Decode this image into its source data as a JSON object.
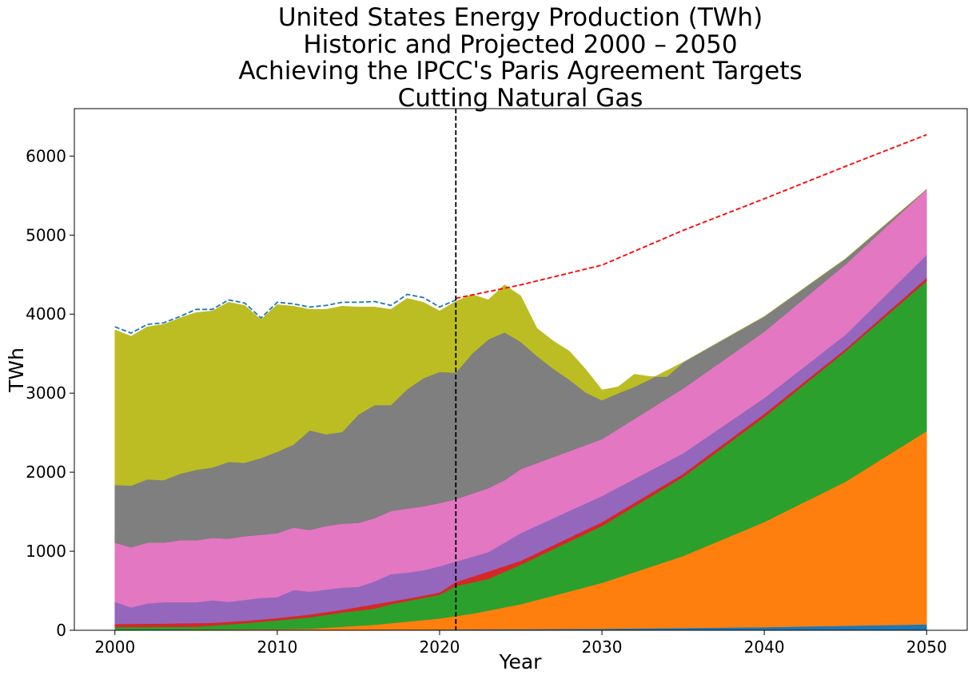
{
  "chart_data": {
    "type": "area",
    "title_lines": [
      "United States Energy Production (TWh)",
      "Historic and Projected 2000 – 2050",
      "Achieving the IPCC's Paris Agreement Targets",
      "Cutting Natural Gas"
    ],
    "xlabel": "Year",
    "ylabel": "TWh",
    "xlim": [
      1997.5,
      2052.5
    ],
    "ylim": [
      0,
      6600
    ],
    "xticks": [
      2000,
      2010,
      2020,
      2030,
      2040,
      2050
    ],
    "yticks": [
      0,
      1000,
      2000,
      3000,
      4000,
      5000,
      6000
    ],
    "grid": false,
    "vline_x": 2021,
    "vline_color": "#000000",
    "stacks": [
      {
        "color": "#1f77b4",
        "points": [
          [
            2000,
            5
          ],
          [
            2010,
            7
          ],
          [
            2020,
            10
          ],
          [
            2030,
            20
          ],
          [
            2040,
            40
          ],
          [
            2050,
            75
          ]
        ]
      },
      {
        "color": "#ff7f0e",
        "points": [
          [
            2000,
            6
          ],
          [
            2005,
            10
          ],
          [
            2010,
            15
          ],
          [
            2012,
            20
          ],
          [
            2014,
            45
          ],
          [
            2016,
            70
          ],
          [
            2018,
            110
          ],
          [
            2020,
            150
          ],
          [
            2021,
            180
          ],
          [
            2022,
            210
          ],
          [
            2025,
            330
          ],
          [
            2030,
            600
          ],
          [
            2035,
            940
          ],
          [
            2040,
            1370
          ],
          [
            2045,
            1880
          ],
          [
            2050,
            2520
          ]
        ]
      },
      {
        "color": "#2ca02c",
        "points": [
          [
            2000,
            40
          ],
          [
            2005,
            45
          ],
          [
            2008,
            90
          ],
          [
            2010,
            125
          ],
          [
            2012,
            165
          ],
          [
            2014,
            225
          ],
          [
            2016,
            275
          ],
          [
            2017,
            330
          ],
          [
            2018,
            370
          ],
          [
            2019,
            410
          ],
          [
            2020,
            450
          ],
          [
            2021,
            560
          ],
          [
            2023,
            650
          ],
          [
            2025,
            830
          ],
          [
            2030,
            1320
          ],
          [
            2035,
            1940
          ],
          [
            2040,
            2700
          ],
          [
            2045,
            3530
          ],
          [
            2050,
            4420
          ]
        ]
      },
      {
        "color": "#d62728",
        "points": [
          [
            2000,
            80
          ],
          [
            2003,
            85
          ],
          [
            2006,
            95
          ],
          [
            2008,
            120
          ],
          [
            2010,
            155
          ],
          [
            2012,
            200
          ],
          [
            2014,
            260
          ],
          [
            2016,
            330
          ],
          [
            2018,
            400
          ],
          [
            2020,
            480
          ],
          [
            2021,
            610
          ],
          [
            2025,
            880
          ],
          [
            2030,
            1370
          ],
          [
            2035,
            1980
          ],
          [
            2040,
            2740
          ],
          [
            2045,
            3560
          ],
          [
            2050,
            4460
          ]
        ]
      },
      {
        "color": "#9467bd",
        "points": [
          [
            2000,
            360
          ],
          [
            2001,
            290
          ],
          [
            2002,
            340
          ],
          [
            2003,
            355
          ],
          [
            2005,
            355
          ],
          [
            2006,
            380
          ],
          [
            2007,
            360
          ],
          [
            2009,
            410
          ],
          [
            2010,
            420
          ],
          [
            2011,
            510
          ],
          [
            2012,
            490
          ],
          [
            2014,
            540
          ],
          [
            2015,
            550
          ],
          [
            2016,
            620
          ],
          [
            2017,
            710
          ],
          [
            2018,
            730
          ],
          [
            2019,
            760
          ],
          [
            2020,
            810
          ],
          [
            2021,
            870
          ],
          [
            2023,
            990
          ],
          [
            2025,
            1230
          ],
          [
            2030,
            1700
          ],
          [
            2035,
            2240
          ],
          [
            2040,
            2940
          ],
          [
            2045,
            3740
          ],
          [
            2050,
            4750
          ]
        ]
      },
      {
        "color": "#e377c2",
        "points": [
          [
            2000,
            1220
          ],
          [
            2001,
            1190
          ],
          [
            2003,
            1250
          ],
          [
            2005,
            1270
          ],
          [
            2006,
            1240
          ],
          [
            2007,
            1230
          ],
          [
            2010,
            1270
          ],
          [
            2011,
            1340
          ],
          [
            2012,
            1300
          ],
          [
            2014,
            1380
          ],
          [
            2015,
            1390
          ],
          [
            2017,
            1560
          ],
          [
            2018,
            1590
          ],
          [
            2019,
            1610
          ],
          [
            2020,
            1650
          ],
          [
            2021,
            1680
          ],
          [
            2023,
            1800
          ],
          [
            2024,
            1920
          ],
          [
            2025,
            2040
          ],
          [
            2030,
            2420
          ],
          [
            2035,
            3060
          ],
          [
            2040,
            3780
          ],
          [
            2045,
            4630
          ],
          [
            2050,
            5580
          ]
        ]
      },
      {
        "color": "#8c564b",
        "points": [
          [
            2000,
            1110
          ],
          [
            2001,
            1050
          ],
          [
            2002,
            1110
          ],
          [
            2003,
            1110
          ],
          [
            2004,
            1140
          ],
          [
            2005,
            1140
          ],
          [
            2006,
            1170
          ],
          [
            2007,
            1160
          ],
          [
            2008,
            1190
          ],
          [
            2009,
            1210
          ],
          [
            2010,
            1230
          ],
          [
            2011,
            1300
          ],
          [
            2012,
            1270
          ],
          [
            2013,
            1320
          ],
          [
            2014,
            1350
          ],
          [
            2015,
            1360
          ],
          [
            2016,
            1420
          ],
          [
            2017,
            1510
          ],
          [
            2018,
            1540
          ],
          [
            2019,
            1570
          ],
          [
            2020,
            1610
          ],
          [
            2021,
            1660
          ],
          [
            2023,
            1800
          ],
          [
            2024,
            1900
          ],
          [
            2025,
            2040
          ],
          [
            2030,
            2420
          ],
          [
            2035,
            3060
          ],
          [
            2040,
            3780
          ],
          [
            2045,
            4630
          ],
          [
            2050,
            5580
          ]
        ]
      },
      {
        "color": "#7f7f7f",
        "points": [
          [
            2000,
            1840
          ],
          [
            2001,
            1830
          ],
          [
            2002,
            1910
          ],
          [
            2003,
            1900
          ],
          [
            2004,
            1980
          ],
          [
            2005,
            2030
          ],
          [
            2006,
            2060
          ],
          [
            2007,
            2130
          ],
          [
            2008,
            2120
          ],
          [
            2009,
            2180
          ],
          [
            2010,
            2260
          ],
          [
            2011,
            2350
          ],
          [
            2012,
            2530
          ],
          [
            2013,
            2480
          ],
          [
            2014,
            2510
          ],
          [
            2015,
            2730
          ],
          [
            2016,
            2850
          ],
          [
            2017,
            2850
          ],
          [
            2018,
            3050
          ],
          [
            2019,
            3190
          ],
          [
            2020,
            3270
          ],
          [
            2021,
            3260
          ],
          [
            2022,
            3500
          ],
          [
            2023,
            3680
          ],
          [
            2024,
            3770
          ],
          [
            2025,
            3650
          ],
          [
            2026,
            3470
          ],
          [
            2027,
            3310
          ],
          [
            2028,
            3170
          ],
          [
            2029,
            3010
          ],
          [
            2030,
            2910
          ],
          [
            2031,
            3000
          ],
          [
            2032,
            3080
          ],
          [
            2033,
            3180
          ],
          [
            2035,
            3390
          ],
          [
            2040,
            3970
          ],
          [
            2045,
            4700
          ],
          [
            2050,
            5580
          ]
        ]
      },
      {
        "color": "#bcbd22",
        "points": [
          [
            2000,
            3800
          ],
          [
            2001,
            3720
          ],
          [
            2002,
            3840
          ],
          [
            2003,
            3870
          ],
          [
            2004,
            3950
          ],
          [
            2005,
            4020
          ],
          [
            2006,
            4040
          ],
          [
            2007,
            4150
          ],
          [
            2008,
            4110
          ],
          [
            2009,
            3930
          ],
          [
            2010,
            4120
          ],
          [
            2011,
            4100
          ],
          [
            2012,
            4060
          ],
          [
            2013,
            4060
          ],
          [
            2014,
            4100
          ],
          [
            2015,
            4090
          ],
          [
            2016,
            4090
          ],
          [
            2017,
            4060
          ],
          [
            2018,
            4200
          ],
          [
            2019,
            4150
          ],
          [
            2020,
            4040
          ],
          [
            2021,
            4160
          ],
          [
            2022,
            4250
          ],
          [
            2023,
            4180
          ],
          [
            2024,
            4370
          ],
          [
            2025,
            4230
          ],
          [
            2026,
            3820
          ],
          [
            2027,
            3660
          ],
          [
            2028,
            3530
          ],
          [
            2029,
            3300
          ],
          [
            2030,
            3040
          ],
          [
            2031,
            3080
          ],
          [
            2032,
            3240
          ],
          [
            2033,
            3210
          ],
          [
            2034,
            3210
          ],
          [
            2035,
            3390
          ],
          [
            2040,
            3970
          ],
          [
            2045,
            4700
          ],
          [
            2050,
            5580
          ]
        ]
      }
    ],
    "lines": [
      {
        "style": "dashed",
        "color": "#1f77b4",
        "points": [
          [
            2000,
            3840
          ],
          [
            2001,
            3760
          ],
          [
            2002,
            3870
          ],
          [
            2003,
            3890
          ],
          [
            2004,
            3970
          ],
          [
            2005,
            4060
          ],
          [
            2006,
            4060
          ],
          [
            2007,
            4180
          ],
          [
            2008,
            4140
          ],
          [
            2009,
            3950
          ],
          [
            2010,
            4150
          ],
          [
            2011,
            4130
          ],
          [
            2012,
            4090
          ],
          [
            2013,
            4110
          ],
          [
            2014,
            4150
          ],
          [
            2015,
            4150
          ],
          [
            2016,
            4160
          ],
          [
            2017,
            4110
          ],
          [
            2018,
            4250
          ],
          [
            2019,
            4210
          ],
          [
            2020,
            4090
          ],
          [
            2021,
            4180
          ]
        ]
      },
      {
        "style": "dashed",
        "color": "#ff0000",
        "points": [
          [
            2021,
            4200
          ],
          [
            2025,
            4370
          ],
          [
            2030,
            4620
          ],
          [
            2035,
            5060
          ],
          [
            2040,
            5460
          ],
          [
            2045,
            5870
          ],
          [
            2050,
            6270
          ]
        ]
      }
    ]
  }
}
